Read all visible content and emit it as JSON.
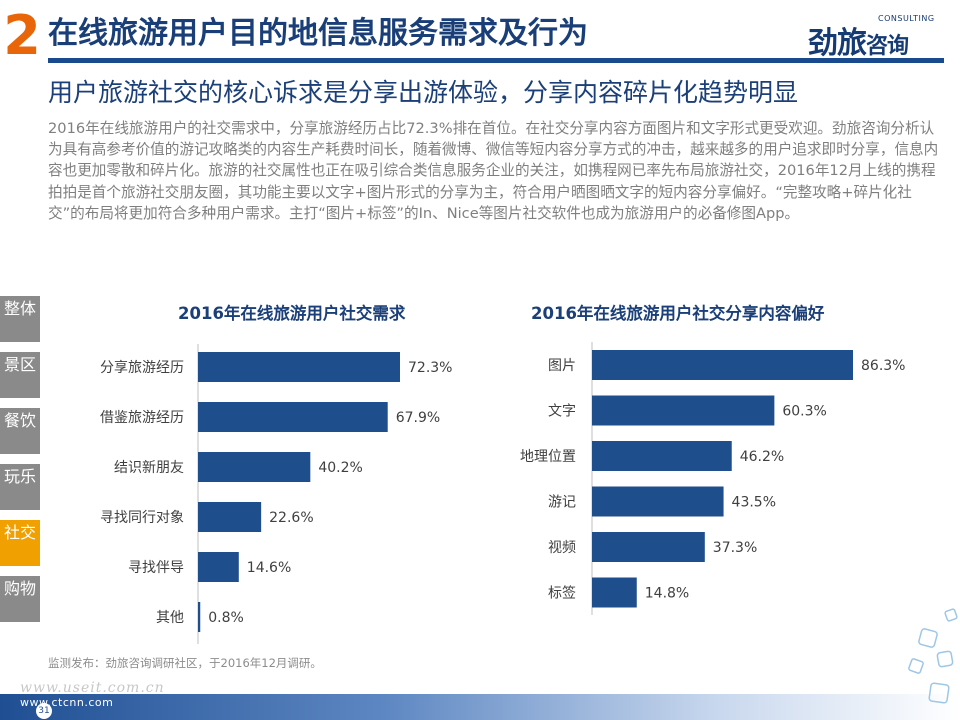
{
  "header": {
    "section_number": "2",
    "title": "在线旅游用户目的地信息服务需求及行为",
    "logo_main_1": "劲旅",
    "logo_main_2": "咨询",
    "logo_sub": "CONSULTING"
  },
  "subtitle": "用户旅游社交的核心诉求是分享出游体验，分享内容碎片化趋势明显",
  "intro": "2016年在线旅游用户的社交需求中，分享旅游经历占比72.3%排在首位。在社交分享内容方面图片和文字形式更受欢迎。劲旅咨询分析认为具有高参考价值的游记攻略类的内容生产耗费时间长，随着微博、微信等短内容分享方式的冲击，越来越多的用户追求即时分享，信息内容也更加零散和碎片化。旅游的社交属性也正在吸引综合类信息服务企业的关注，如携程网已率先布局旅游社交，2016年12月上线的携程拍拍是首个旅游社交朋友圈，其功能主要以文字+图片形式的分享为主，符合用户晒图晒文字的短内容分享偏好。“完整攻略+碎片化社交”的布局将更加符合多种用户需求。主打“图片+标签”的In、Nice等图片社交软件也成为旅游用户的必备修图App。",
  "sidebar": {
    "items": [
      {
        "label": "整体"
      },
      {
        "label": "景区"
      },
      {
        "label": "餐饮"
      },
      {
        "label": "玩乐"
      },
      {
        "label": "社交"
      },
      {
        "label": "购物"
      }
    ],
    "active_index": 4
  },
  "colors": {
    "bar": "#1f4e8c",
    "header_blue": "#1a4a8e",
    "section_orange": "#e8650a",
    "sidebar_gray": "#8a8a8a",
    "sidebar_active": "#f0a000"
  },
  "chart_data": [
    {
      "type": "bar",
      "orientation": "horizontal",
      "title": "2016年在线旅游用户社交需求",
      "categories": [
        "分享旅游经历",
        "借鉴旅游经历",
        "结识新朋友",
        "寻找同行对象",
        "寻找伴导",
        "其他"
      ],
      "values": [
        72.3,
        67.9,
        40.2,
        22.6,
        14.6,
        0.8
      ],
      "value_labels": [
        "72.3%",
        "67.9%",
        "40.2%",
        "22.6%",
        "14.6%",
        "0.8%"
      ],
      "unit": "%",
      "xlim": [
        0,
        100
      ]
    },
    {
      "type": "bar",
      "orientation": "horizontal",
      "title": "2016年在线旅游用户社交分享内容偏好",
      "categories": [
        "图片",
        "文字",
        "地理位置",
        "游记",
        "视频",
        "标签"
      ],
      "values": [
        86.3,
        60.3,
        46.2,
        43.5,
        37.3,
        14.8
      ],
      "value_labels": [
        "86.3%",
        "60.3%",
        "46.2%",
        "43.5%",
        "37.3%",
        "14.8%"
      ],
      "unit": "%",
      "xlim": [
        0,
        100
      ]
    }
  ],
  "source": "监测发布：劲旅咨询调研社区，于2016年12月调研。",
  "footer": {
    "url": "www.ctcnn.com",
    "watermark": "www.useit.com.cn",
    "page": "31"
  }
}
